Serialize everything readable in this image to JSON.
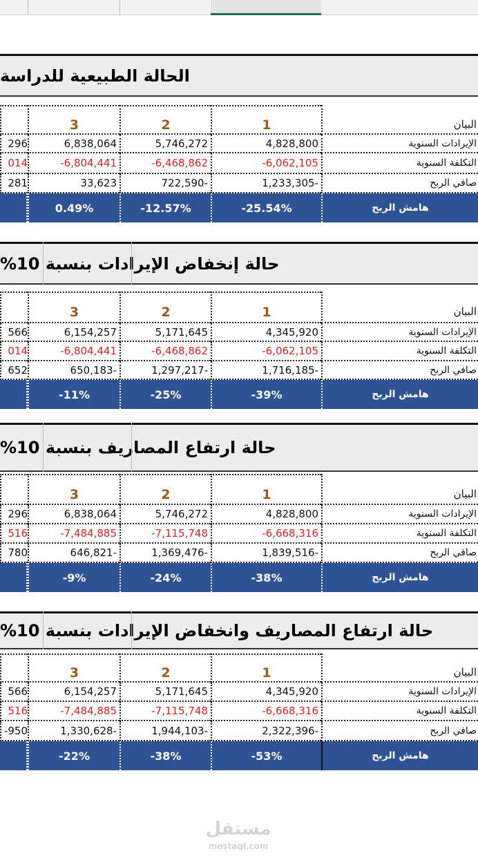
{
  "sections": [
    {
      "title": "الحالة الطبيعية للدراسة",
      "header": [
        "البيان",
        "1",
        "2",
        "3"
      ],
      "rows": [
        [
          "الإيرادات السنوية",
          "4,828,800",
          "5,746,272",
          "6,838,064",
          "296"
        ],
        [
          "التكلفة السنوية",
          "-6,062,105",
          "-6,468,862",
          "-6,804,441",
          "014"
        ],
        [
          "صافي الربح",
          "1,233,305-",
          "722,590-",
          "33,623",
          "281"
        ]
      ],
      "margin": [
        "هامش الربح",
        "-25.54%",
        "-12.57%",
        "0.49%"
      ]
    },
    {
      "title": "حالة إنخفاض الإيرادات بنسبة 10%",
      "header": [
        "البيان",
        "1",
        "2",
        "3"
      ],
      "rows": [
        [
          "الإيرادات السنوية",
          "4,345,920",
          "5,171,645",
          "6,154,257",
          "566"
        ],
        [
          "التكلفة السنوية",
          "-6,062,105",
          "-6,468,862",
          "-6,804,441",
          "014"
        ],
        [
          "صافي الربح",
          "1,716,185-",
          "1,297,217-",
          "650,183-",
          "652"
        ]
      ],
      "margin": [
        "هامش الربح",
        "-39%",
        "-25%",
        "-11%"
      ]
    },
    {
      "title": "حالة ارتفاع المصاريف بنسبة 10%",
      "header": [
        "البيان",
        "1",
        "2",
        "3"
      ],
      "rows": [
        [
          "الإيرادات السنوية",
          "4,828,800",
          "5,746,272",
          "6,838,064",
          "296"
        ],
        [
          "التكلفة السنوية",
          "-6,668,316",
          "-7,115,748",
          "-7,484,885",
          "516"
        ],
        [
          "صافي الربح",
          "1,839,516-",
          "1,369,476-",
          "646,821-",
          "780"
        ]
      ],
      "margin": [
        "هامش الربح",
        "-38%",
        "-24%",
        "-9%"
      ]
    },
    {
      "title": "حالة ارتفاع المصاريف وانخفاض الإيرادات بنسبة 10%",
      "header": [
        "البيان",
        "1",
        "2",
        "3"
      ],
      "rows": [
        [
          "الإيرادات السنوية",
          "4,345,920",
          "5,171,645",
          "6,154,257",
          "566"
        ],
        [
          "التكلفة السنوية",
          "-6,668,316",
          "-7,115,748",
          "-7,484,885",
          "516"
        ],
        [
          "صافي الربح",
          "2,322,396-",
          "1,944,103-",
          "1,330,628-",
          "950-"
        ]
      ],
      "margin": [
        "هامش الربح",
        "-53%",
        "-38%",
        "-22%"
      ]
    }
  ],
  "watermark": {
    "brand": "مستقل",
    "url": "mostaql.com"
  }
}
